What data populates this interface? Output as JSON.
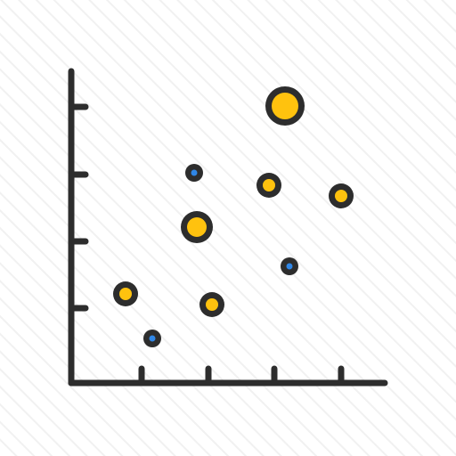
{
  "icon": {
    "semantic": "bubble-scatter-chart-icon",
    "colors": {
      "background": "#ffffff",
      "stripe": "#f2f2f2",
      "stroke": "#2d2d2d",
      "fill_primary": "#ffc20e",
      "fill_secondary": "#2f86e6"
    },
    "bubbles": [
      {
        "fill": "primary",
        "size": "large"
      },
      {
        "fill": "primary",
        "size": "large"
      },
      {
        "fill": "primary",
        "size": "medium"
      },
      {
        "fill": "primary",
        "size": "medium"
      },
      {
        "fill": "primary",
        "size": "medium"
      },
      {
        "fill": "primary",
        "size": "medium"
      },
      {
        "fill": "secondary",
        "size": "small"
      },
      {
        "fill": "secondary",
        "size": "small"
      },
      {
        "fill": "secondary",
        "size": "small"
      }
    ]
  }
}
